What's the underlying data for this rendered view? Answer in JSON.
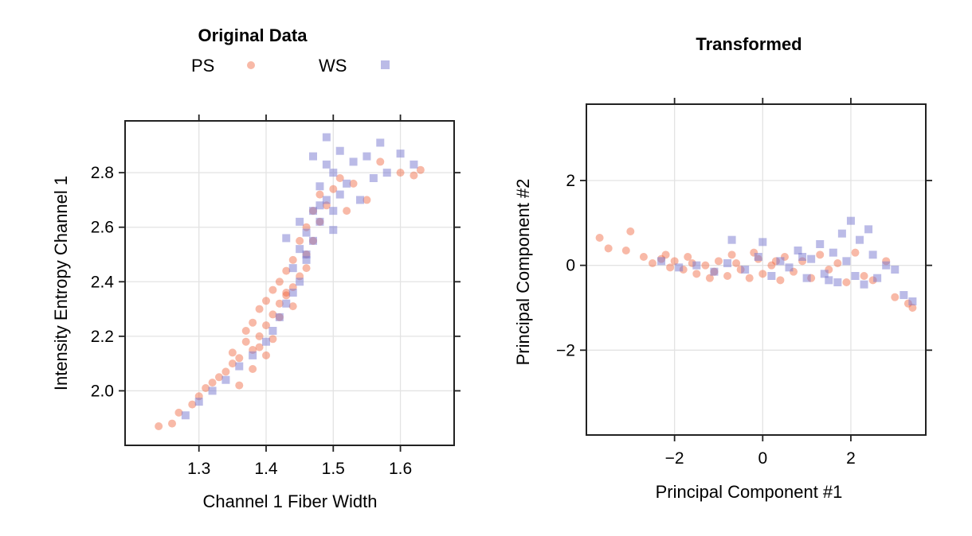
{
  "chart_data": [
    {
      "type": "scatter",
      "title": "Original Data",
      "xlabel": "Channel 1 Fiber Width",
      "ylabel": "Intensity Entropy Channel 1",
      "xlim": [
        1.19,
        1.68
      ],
      "ylim": [
        1.8,
        2.99
      ],
      "xticks": [
        "1.3",
        "1.4",
        "1.5",
        "1.6"
      ],
      "yticks": [
        "2.0",
        "2.2",
        "2.4",
        "2.6",
        "2.8"
      ],
      "grid": true,
      "legend": {
        "placement": "top",
        "entries": [
          {
            "name": "PS",
            "marker": "circle",
            "color": "#f0643c"
          },
          {
            "name": "WS",
            "marker": "square",
            "color": "#7878d0"
          }
        ]
      },
      "series": [
        {
          "name": "PS",
          "color": "#f0643c",
          "x": [
            1.24,
            1.26,
            1.27,
            1.29,
            1.3,
            1.31,
            1.32,
            1.33,
            1.34,
            1.35,
            1.35,
            1.36,
            1.37,
            1.37,
            1.38,
            1.38,
            1.39,
            1.39,
            1.4,
            1.4,
            1.41,
            1.41,
            1.42,
            1.42,
            1.43,
            1.43,
            1.44,
            1.44,
            1.45,
            1.45,
            1.46,
            1.46,
            1.47,
            1.47,
            1.48,
            1.48,
            1.49,
            1.5,
            1.51,
            1.52,
            1.53,
            1.55,
            1.57,
            1.6,
            1.62,
            1.63,
            1.36,
            1.38,
            1.4,
            1.42,
            1.44,
            1.46,
            1.43,
            1.41,
            1.39
          ],
          "y": [
            1.87,
            1.88,
            1.92,
            1.95,
            1.98,
            2.01,
            2.03,
            2.05,
            2.07,
            2.1,
            2.14,
            2.12,
            2.18,
            2.22,
            2.15,
            2.25,
            2.2,
            2.3,
            2.24,
            2.33,
            2.28,
            2.37,
            2.32,
            2.4,
            2.35,
            2.44,
            2.38,
            2.48,
            2.42,
            2.55,
            2.5,
            2.6,
            2.55,
            2.66,
            2.62,
            2.72,
            2.68,
            2.74,
            2.78,
            2.66,
            2.76,
            2.7,
            2.84,
            2.8,
            2.79,
            2.81,
            2.02,
            2.08,
            2.13,
            2.27,
            2.31,
            2.45,
            2.36,
            2.19,
            2.16
          ]
        },
        {
          "name": "WS",
          "color": "#7878d0",
          "x": [
            1.28,
            1.3,
            1.32,
            1.34,
            1.36,
            1.38,
            1.4,
            1.41,
            1.42,
            1.43,
            1.44,
            1.44,
            1.45,
            1.45,
            1.46,
            1.46,
            1.47,
            1.47,
            1.48,
            1.48,
            1.49,
            1.49,
            1.5,
            1.5,
            1.51,
            1.51,
            1.52,
            1.53,
            1.54,
            1.55,
            1.56,
            1.57,
            1.58,
            1.6,
            1.62,
            1.43,
            1.45,
            1.47,
            1.49,
            1.48,
            1.46,
            1.5
          ],
          "y": [
            1.91,
            1.96,
            2.0,
            2.04,
            2.09,
            2.13,
            2.18,
            2.22,
            2.27,
            2.32,
            2.36,
            2.45,
            2.4,
            2.52,
            2.48,
            2.58,
            2.55,
            2.66,
            2.62,
            2.75,
            2.7,
            2.83,
            2.66,
            2.8,
            2.72,
            2.88,
            2.76,
            2.84,
            2.7,
            2.86,
            2.78,
            2.91,
            2.8,
            2.87,
            2.83,
            2.56,
            2.62,
            2.86,
            2.93,
            2.68,
            2.5,
            2.59
          ]
        }
      ]
    },
    {
      "type": "scatter",
      "title": "Transformed",
      "xlabel": "Principal Component #1",
      "ylabel": "Principal Component #2",
      "xlim": [
        -4.0,
        3.7
      ],
      "ylim": [
        -4.0,
        3.8
      ],
      "xticks": [
        "−2",
        "0",
        "2"
      ],
      "yticks": [
        "−2",
        "0",
        "2"
      ],
      "grid": true,
      "series": [
        {
          "name": "PS",
          "color": "#f0643c",
          "x": [
            -3.7,
            -3.5,
            -3.1,
            -3.0,
            -2.7,
            -2.5,
            -2.3,
            -2.1,
            -2.0,
            -1.8,
            -1.6,
            -1.5,
            -1.3,
            -1.1,
            -1.0,
            -0.8,
            -0.6,
            -0.5,
            -0.3,
            -0.1,
            0.0,
            0.2,
            0.4,
            0.5,
            0.7,
            0.9,
            1.1,
            1.3,
            1.5,
            1.7,
            1.9,
            2.1,
            2.3,
            2.5,
            2.8,
            3.0,
            3.3,
            3.4,
            -2.2,
            -1.7,
            -1.2,
            -0.7,
            -0.2,
            0.3
          ],
          "y": [
            0.65,
            0.4,
            0.35,
            0.8,
            0.2,
            0.05,
            0.15,
            -0.05,
            0.1,
            -0.1,
            0.05,
            -0.2,
            0.0,
            -0.15,
            0.1,
            -0.25,
            0.05,
            -0.1,
            -0.3,
            0.15,
            -0.2,
            0.0,
            -0.35,
            0.2,
            -0.15,
            0.1,
            -0.3,
            0.25,
            -0.1,
            0.05,
            -0.4,
            0.3,
            -0.25,
            -0.35,
            0.1,
            -0.75,
            -0.9,
            -1.0,
            0.25,
            0.2,
            -0.3,
            0.25,
            0.3,
            0.1
          ]
        },
        {
          "name": "WS",
          "color": "#7878d0",
          "x": [
            -2.3,
            -1.9,
            -1.5,
            -1.1,
            -0.8,
            -0.4,
            -0.1,
            0.2,
            0.4,
            0.6,
            0.8,
            1.0,
            1.1,
            1.3,
            1.4,
            1.6,
            1.7,
            1.8,
            1.9,
            2.0,
            2.1,
            2.2,
            2.3,
            2.5,
            2.6,
            2.8,
            3.0,
            3.2,
            3.4,
            -0.7,
            0.0,
            0.9,
            1.5,
            2.4
          ],
          "y": [
            0.1,
            -0.05,
            0.0,
            -0.15,
            0.05,
            -0.1,
            0.2,
            -0.25,
            0.1,
            -0.05,
            0.35,
            -0.3,
            0.15,
            0.5,
            -0.2,
            0.3,
            -0.4,
            0.75,
            0.1,
            1.05,
            -0.25,
            0.6,
            -0.45,
            0.25,
            -0.3,
            0.0,
            -0.1,
            -0.7,
            -0.85,
            0.6,
            0.55,
            0.2,
            -0.35,
            0.85
          ]
        }
      ]
    }
  ]
}
